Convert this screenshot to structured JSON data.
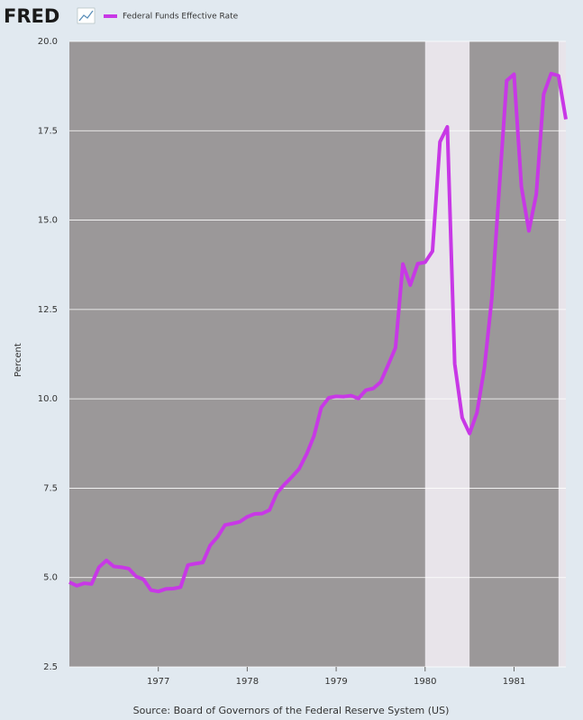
{
  "brand": "FRED",
  "chart_data": {
    "type": "line",
    "y_label": "Percent",
    "source": "Source: Board of Governors of the Federal Reserve System (US)",
    "x": [
      1976.0,
      1976.083,
      1976.167,
      1976.25,
      1976.333,
      1976.417,
      1976.5,
      1976.583,
      1976.667,
      1976.75,
      1976.833,
      1976.917,
      1977.0,
      1977.083,
      1977.167,
      1977.25,
      1977.333,
      1977.417,
      1977.5,
      1977.583,
      1977.667,
      1977.75,
      1977.833,
      1977.917,
      1978.0,
      1978.083,
      1978.167,
      1978.25,
      1978.333,
      1978.417,
      1978.5,
      1978.583,
      1978.667,
      1978.75,
      1978.833,
      1978.917,
      1979.0,
      1979.083,
      1979.167,
      1979.25,
      1979.333,
      1979.417,
      1979.5,
      1979.583,
      1979.667,
      1979.75,
      1979.833,
      1979.917,
      1980.0,
      1980.083,
      1980.167,
      1980.25,
      1980.333,
      1980.417,
      1980.5,
      1980.583,
      1980.667,
      1980.75,
      1980.833,
      1980.917,
      1981.0,
      1981.083,
      1981.167,
      1981.25,
      1981.333,
      1981.417,
      1981.5,
      1981.583
    ],
    "series": [
      {
        "name": "Federal Funds Effective Rate",
        "color": "#c838e6",
        "values": [
          4.87,
          4.77,
          4.84,
          4.82,
          5.29,
          5.48,
          5.31,
          5.29,
          5.25,
          5.03,
          4.95,
          4.65,
          4.61,
          4.68,
          4.69,
          4.73,
          5.35,
          5.39,
          5.42,
          5.9,
          6.14,
          6.47,
          6.51,
          6.56,
          6.7,
          6.78,
          6.79,
          6.89,
          7.36,
          7.6,
          7.81,
          8.04,
          8.45,
          8.96,
          9.76,
          10.03,
          10.07,
          10.06,
          10.09,
          10.01,
          10.24,
          10.29,
          10.47,
          10.94,
          11.43,
          13.77,
          13.18,
          13.78,
          13.82,
          14.13,
          17.19,
          17.61,
          10.98,
          9.47,
          9.03,
          9.61,
          10.87,
          12.81,
          15.85,
          18.9,
          19.08,
          15.93,
          14.7,
          15.72,
          18.52,
          19.1,
          19.04,
          17.82
        ]
      }
    ],
    "recessions": [
      [
        1980.0,
        1980.5
      ],
      [
        1981.5,
        1981.583
      ]
    ],
    "xlim": [
      1976.0,
      1981.583
    ],
    "xticks": [
      1977,
      1978,
      1979,
      1980,
      1981
    ],
    "ylim": [
      2.5,
      20
    ],
    "yticks": [
      2.5,
      {
        "value": 5,
        "label": "5.0"
      },
      7.5,
      {
        "value": 10,
        "label": "10.0"
      },
      12.5,
      {
        "value": 15,
        "label": "15.0"
      },
      17.5,
      {
        "value": 20,
        "label": "20.0"
      }
    ],
    "grid": true
  }
}
